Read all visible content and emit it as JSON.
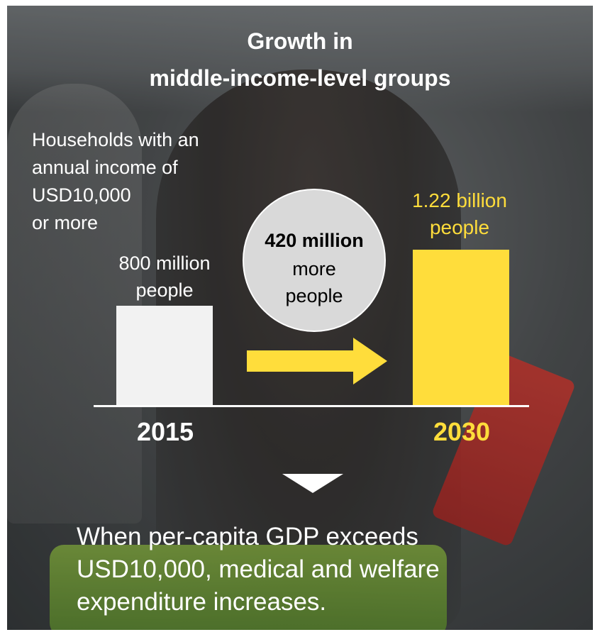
{
  "title": {
    "line1": "Growth in",
    "line2": "middle-income-level groups"
  },
  "households_label": [
    "Households with an",
    "annual income of",
    "USD10,000",
    "or more"
  ],
  "chart_data": {
    "type": "bar",
    "categories": [
      "2015",
      "2030"
    ],
    "values": [
      800,
      1220
    ],
    "unit": "million people",
    "data_labels": [
      [
        "800 million",
        "people"
      ],
      [
        "1.22 billion",
        "people"
      ]
    ],
    "colors": [
      "#f2f2f2",
      "#ffdd3b"
    ],
    "ylim": [
      0,
      1220
    ]
  },
  "difference": {
    "bold": "420 million",
    "line2": "more",
    "line3": "people"
  },
  "conclusion": [
    "When per-capita GDP exceeds",
    "USD10,000, medical and welfare",
    "expenditure increases."
  ],
  "colors": {
    "accent": "#ffdd3b",
    "text": "#ffffff",
    "circle": "#d9d9d9"
  }
}
